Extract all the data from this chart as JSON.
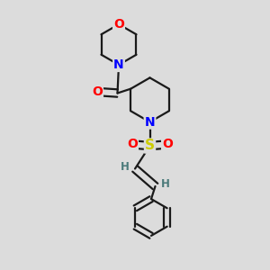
{
  "bg_color": "#dcdcdc",
  "atom_colors": {
    "O": "#ff0000",
    "N": "#0000ff",
    "S": "#cccc00",
    "C": "#1a1a1a",
    "H": "#4a7a7a"
  },
  "bond_color": "#1a1a1a",
  "bond_width": 1.6,
  "font_size_atom": 10,
  "font_size_H": 8.5,
  "font_size_S": 11
}
